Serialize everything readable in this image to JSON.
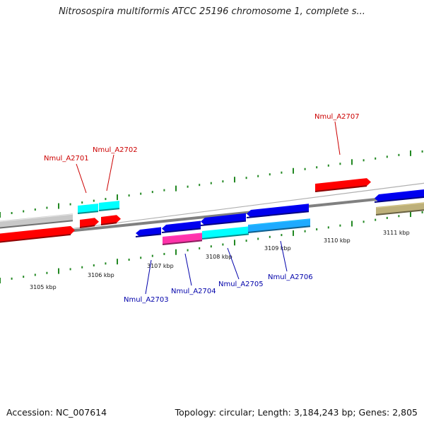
{
  "title": "Nitrosospira multiformis ATCC 25196 chromosome 1, complete s...",
  "footer": {
    "accession": "Accession: NC_007614",
    "summary": "Topology: circular; Length: 3,184,243 bp; Genes: 2,805"
  },
  "scale": {
    "ticks": [
      {
        "label": "3105 kbp"
      },
      {
        "label": "3106 kbp"
      },
      {
        "label": "3107 kbp"
      },
      {
        "label": "3108 kbp"
      },
      {
        "label": "3109 kbp"
      },
      {
        "label": "3110 kbp"
      },
      {
        "label": "3111 kbp"
      }
    ]
  },
  "genes": [
    {
      "name": "Nmul_A2701",
      "color": "#00ffff",
      "label_color": "#cc0000"
    },
    {
      "name": "Nmul_A2702",
      "color": "#00ffff",
      "label_color": "#cc0000"
    },
    {
      "name": "Nmul_A2703",
      "color": "#0000ee",
      "label_color": "#0000aa"
    },
    {
      "name": "Nmul_A2704",
      "color": "#0000ee",
      "label_color": "#0000aa"
    },
    {
      "name": "Nmul_A2705",
      "color": "#0000ee",
      "label_color": "#0000aa"
    },
    {
      "name": "Nmul_A2706",
      "color": "#0000ee",
      "label_color": "#0000aa"
    },
    {
      "name": "Nmul_A2707",
      "color": "#ff0000",
      "label_color": "#cc0000"
    }
  ],
  "colors": {
    "backbone": "#808080",
    "tick": "#228822",
    "gray_gene": "#c8c8c8",
    "red_gene": "#ff0000",
    "cyan_gene": "#00ffff",
    "blue_gene": "#0000ee",
    "magenta_gene": "#ff33aa",
    "skyblue_gene": "#1eaaff",
    "olive_gene": "#bdb07a"
  }
}
